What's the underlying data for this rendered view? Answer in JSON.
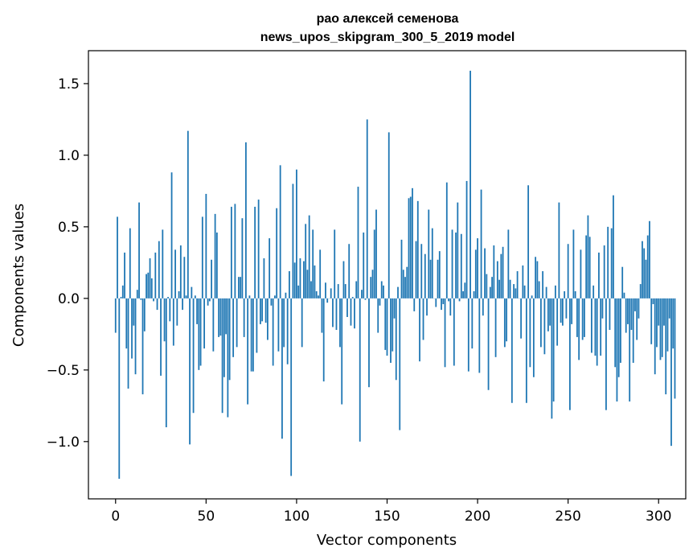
{
  "chart_data": {
    "type": "bar",
    "title": "рао алексей семенова",
    "subtitle": "news_upos_skipgram_300_5_2019 model",
    "xlabel": "Vector components",
    "ylabel": "Components values",
    "xlim": [
      -15,
      315
    ],
    "ylim": [
      -1.4,
      1.73
    ],
    "xticks": [
      0,
      50,
      100,
      150,
      200,
      250,
      300
    ],
    "xtick_labels": [
      "0",
      "50",
      "100",
      "150",
      "200",
      "250",
      "300"
    ],
    "yticks": [
      -1.0,
      -0.5,
      0.0,
      0.5,
      1.0,
      1.5
    ],
    "ytick_labels": [
      "−1.0",
      "−0.5",
      "0.0",
      "0.5",
      "1.0",
      "1.5"
    ],
    "grid": false,
    "color": "#1f77b4",
    "x_start": 0,
    "values": [
      -0.24,
      0.57,
      -1.26,
      0.01,
      0.09,
      0.32,
      -0.35,
      -0.63,
      0.49,
      -0.42,
      -0.19,
      -0.53,
      0.06,
      0.67,
      -0.01,
      -0.67,
      -0.23,
      0.17,
      0.18,
      0.28,
      0.14,
      -0.02,
      0.32,
      -0.08,
      0.4,
      -0.54,
      0.48,
      -0.3,
      -0.9,
      0.01,
      -0.16,
      0.88,
      -0.33,
      0.34,
      -0.19,
      0.05,
      0.37,
      -0.08,
      0.29,
      0.02,
      1.17,
      -1.02,
      0.08,
      -0.8,
      0.02,
      -0.18,
      -0.5,
      -0.47,
      0.57,
      -0.35,
      0.73,
      -0.05,
      -0.02,
      0.27,
      -0.37,
      0.59,
      0.46,
      -0.27,
      -0.26,
      -0.8,
      -0.55,
      -0.25,
      -0.83,
      -0.57,
      0.64,
      -0.41,
      0.66,
      -0.34,
      0.15,
      0.15,
      0.56,
      -0.27,
      1.09,
      -0.74,
      0.02,
      -0.51,
      -0.51,
      0.64,
      -0.38,
      0.69,
      -0.18,
      -0.16,
      0.28,
      -0.17,
      -0.29,
      0.42,
      -0.05,
      -0.47,
      0.02,
      0.63,
      -0.37,
      0.93,
      -0.98,
      -0.34,
      0.04,
      -0.46,
      0.19,
      -1.24,
      0.8,
      0.25,
      0.9,
      0.09,
      0.28,
      -0.34,
      0.26,
      0.52,
      0.2,
      0.58,
      0.12,
      0.48,
      0.23,
      0.05,
      0.02,
      0.34,
      -0.24,
      -0.58,
      0.11,
      -0.03,
      0.0,
      0.07,
      -0.2,
      0.48,
      -0.22,
      0.1,
      -0.34,
      -0.74,
      0.26,
      0.1,
      -0.13,
      0.38,
      -0.19,
      0.01,
      -0.21,
      0.12,
      0.78,
      -1.0,
      0.06,
      0.46,
      -0.01,
      1.25,
      -0.62,
      0.15,
      0.2,
      0.48,
      0.62,
      -0.24,
      -0.05,
      0.12,
      0.09,
      -0.36,
      -0.4,
      1.16,
      -0.45,
      -0.37,
      -0.14,
      -0.57,
      0.08,
      -0.92,
      0.41,
      0.2,
      0.15,
      0.22,
      0.7,
      0.71,
      0.77,
      -0.09,
      0.4,
      0.68,
      -0.44,
      0.38,
      -0.29,
      0.31,
      -0.12,
      0.62,
      0.27,
      0.49,
      0.0,
      -0.06,
      0.27,
      0.33,
      -0.08,
      -0.04,
      -0.48,
      0.81,
      -0.02,
      -0.12,
      0.48,
      -0.47,
      0.46,
      0.67,
      -0.02,
      0.45,
      0.05,
      0.11,
      0.82,
      -0.51,
      1.59,
      -0.35,
      0.05,
      0.34,
      0.42,
      -0.52,
      0.76,
      -0.12,
      0.35,
      0.17,
      -0.64,
      0.08,
      0.15,
      0.37,
      -0.41,
      0.26,
      0.13,
      0.31,
      0.36,
      -0.34,
      -0.3,
      0.48,
      0.13,
      -0.73,
      0.1,
      0.07,
      0.19,
      0.0,
      -0.28,
      0.23,
      0.09,
      -0.73,
      0.79,
      -0.48,
      0.02,
      -0.55,
      0.29,
      0.26,
      0.12,
      -0.34,
      0.19,
      -0.39,
      0.08,
      -0.23,
      -0.19,
      -0.84,
      -0.72,
      0.09,
      -0.33,
      0.67,
      -0.17,
      -0.19,
      0.05,
      -0.14,
      0.38,
      -0.78,
      -0.18,
      0.48,
      0.05,
      -0.27,
      -0.43,
      0.34,
      -0.29,
      -0.27,
      0.44,
      0.58,
      0.43,
      -0.38,
      0.09,
      -0.4,
      -0.47,
      0.32,
      -0.4,
      -0.14,
      0.37,
      -0.78,
      0.5,
      -0.22,
      0.49,
      0.72,
      -0.48,
      -0.72,
      -0.55,
      -0.45,
      0.22,
      0.04,
      -0.24,
      -0.18,
      -0.72,
      -0.22,
      -0.45,
      -0.09,
      -0.29,
      -0.14,
      0.1,
      0.4,
      0.35,
      0.27,
      0.44,
      0.54,
      -0.32,
      -0.04,
      -0.53,
      -0.34,
      -0.19,
      -0.43,
      -0.41,
      -0.19,
      -0.67,
      -0.37,
      -0.14,
      -1.03,
      -0.35,
      -0.7
    ]
  }
}
